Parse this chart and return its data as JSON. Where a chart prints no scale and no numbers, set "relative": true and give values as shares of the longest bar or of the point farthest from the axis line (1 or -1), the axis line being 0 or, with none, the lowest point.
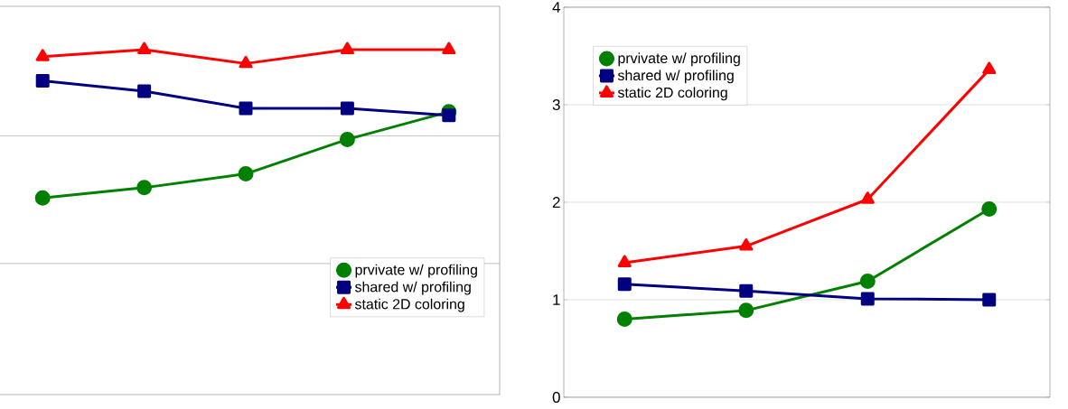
{
  "chart_data": [
    {
      "type": "line",
      "relative": true,
      "categories": [
        null,
        null,
        null,
        null,
        null
      ],
      "legend": "bottom right",
      "tick_labels": false,
      "ref_lines": [
        {
          "axis": "y",
          "value": 0.38,
          "color": "#b2b2b2"
        },
        {
          "axis": "y",
          "value": 0.75,
          "color": "#b2b2b2"
        }
      ],
      "series": [
        {
          "name": "prvivate w/ profiling",
          "color": "#008000",
          "marker": "circle",
          "values": [
            0.57,
            0.6,
            0.64,
            0.74,
            0.82
          ]
        },
        {
          "name": "shared w/ profiling",
          "color": "#000080",
          "marker": "square",
          "values": [
            0.91,
            0.88,
            0.83,
            0.83,
            0.81
          ]
        },
        {
          "name": "static 2D coloring",
          "color": "#ff0000",
          "marker": "triangle",
          "values": [
            0.98,
            1.0,
            0.96,
            1.0,
            1.0
          ]
        }
      ]
    },
    {
      "type": "line",
      "categories": [
        null,
        null,
        null,
        null
      ],
      "ylim": [
        0,
        4
      ],
      "yticks": [
        0,
        1,
        2,
        3,
        4
      ],
      "grid": "y",
      "legend": "top left",
      "tick_labels": "y",
      "series": [
        {
          "name": "prvivate w/ profiling",
          "color": "#008000",
          "marker": "circle",
          "values": [
            0.8,
            0.89,
            1.19,
            1.93
          ]
        },
        {
          "name": "shared w/ profiling",
          "color": "#000080",
          "marker": "square",
          "values": [
            1.16,
            1.09,
            1.01,
            1.0
          ]
        },
        {
          "name": "static 2D coloring",
          "color": "#ff0000",
          "marker": "triangle",
          "values": [
            1.38,
            1.55,
            2.03,
            3.36
          ]
        }
      ]
    }
  ]
}
